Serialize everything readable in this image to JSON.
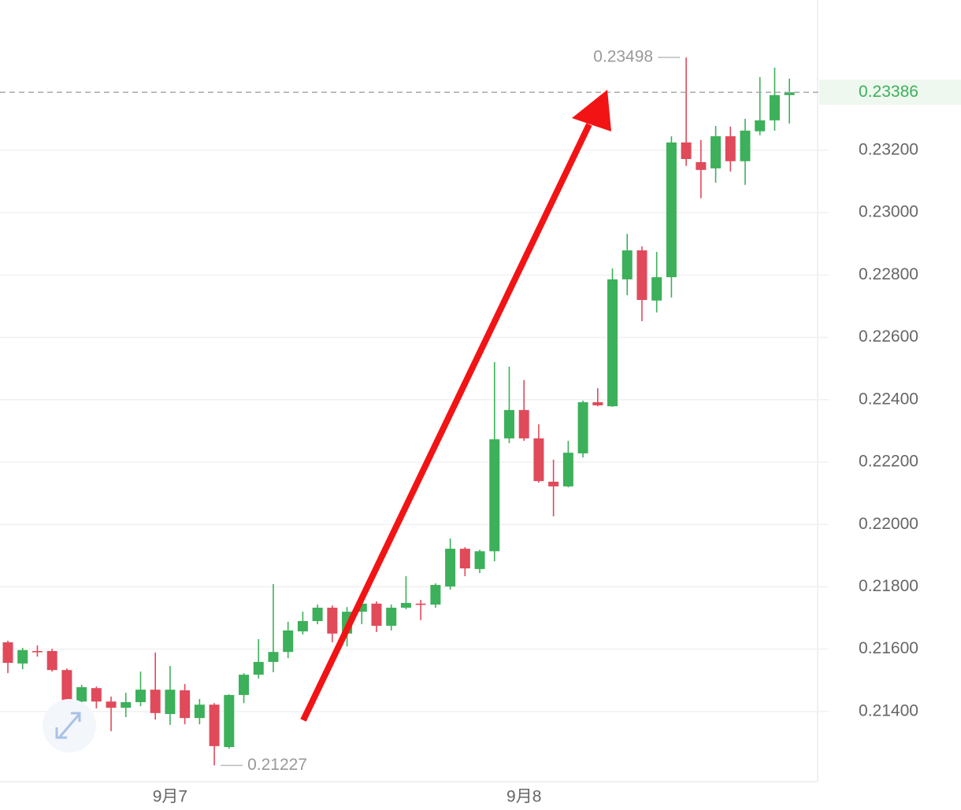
{
  "chart_data": {
    "type": "candlestick",
    "categories": [
      null,
      null,
      null,
      null,
      null,
      null,
      null,
      null,
      null,
      null,
      null,
      "9月7",
      null,
      null,
      null,
      null,
      null,
      null,
      null,
      null,
      null,
      null,
      null,
      null,
      null,
      null,
      null,
      null,
      null,
      null,
      null,
      null,
      null,
      null,
      null,
      "9月8",
      null,
      null,
      null,
      null,
      null,
      null,
      null,
      null,
      null,
      null,
      null,
      null,
      null,
      null,
      null,
      null,
      null,
      null
    ],
    "open": [
      0.21622,
      0.21554,
      0.21594,
      0.21594,
      0.21533,
      0.21432,
      0.21475,
      0.21432,
      0.21412,
      0.2143,
      0.2147,
      0.21392,
      0.21468,
      0.21379,
      0.21422,
      0.21286,
      0.21453,
      0.21518,
      0.21559,
      0.21591,
      0.21657,
      0.2169,
      0.21733,
      0.2165,
      0.2172,
      0.21746,
      0.21675,
      0.21733,
      0.21746,
      0.21743,
      0.21801,
      0.21922,
      0.21857,
      0.21914,
      0.22276,
      0.22367,
      0.22276,
      0.22137,
      0.22122,
      0.22228,
      0.22392,
      0.22379,
      0.22786,
      0.22879,
      0.22718,
      0.22793,
      0.23225,
      0.23162,
      0.23142,
      0.23245,
      0.23165,
      0.23261,
      0.23296,
      0.23377
    ],
    "high": [
      0.21627,
      0.21604,
      0.21612,
      0.21601,
      0.21538,
      0.21486,
      0.2148,
      0.21448,
      0.2146,
      0.21528,
      0.21589,
      0.21546,
      0.21488,
      0.2144,
      0.21427,
      0.21455,
      0.21523,
      0.21632,
      0.21809,
      0.21688,
      0.2172,
      0.21743,
      0.2174,
      0.21735,
      0.21756,
      0.21753,
      0.21743,
      0.21834,
      0.21758,
      0.21811,
      0.21955,
      0.21927,
      0.21919,
      0.22521,
      0.22506,
      0.22463,
      0.22321,
      0.22208,
      0.22268,
      0.22397,
      0.22437,
      0.22821,
      0.22932,
      0.22892,
      0.22874,
      0.23245,
      0.23498,
      0.23233,
      0.23278,
      0.23276,
      0.23301,
      0.23435,
      0.23465,
      0.2343
    ],
    "low": [
      0.21523,
      0.21536,
      0.21576,
      0.21528,
      0.21427,
      0.21427,
      0.2141,
      0.21337,
      0.21382,
      0.21417,
      0.21374,
      0.21357,
      0.21359,
      0.21359,
      0.21227,
      0.21281,
      0.21427,
      0.21506,
      0.21526,
      0.21571,
      0.21647,
      0.2168,
      0.21622,
      0.21609,
      0.2168,
      0.21655,
      0.2166,
      0.21728,
      0.21693,
      0.21733,
      0.21791,
      0.21834,
      0.21844,
      0.21882,
      0.22261,
      0.22268,
      0.22134,
      0.22026,
      0.22119,
      0.22215,
      0.22379,
      0.22377,
      0.22735,
      0.22652,
      0.2268,
      0.22728,
      0.2315,
      0.23046,
      0.23096,
      0.23132,
      0.23089,
      0.23248,
      0.23263,
      0.23286
    ],
    "close": [
      0.21556,
      0.21597,
      0.21591,
      0.21533,
      0.21435,
      0.21478,
      0.21432,
      0.21412,
      0.2143,
      0.2147,
      0.21395,
      0.2147,
      0.21379,
      0.21422,
      0.21289,
      0.21453,
      0.21518,
      0.21559,
      0.21591,
      0.2166,
      0.2169,
      0.21733,
      0.2165,
      0.2172,
      0.21746,
      0.21675,
      0.21733,
      0.21748,
      0.21743,
      0.21806,
      0.21922,
      0.21859,
      0.21914,
      0.22273,
      0.22367,
      0.22276,
      0.22139,
      0.22122,
      0.2223,
      0.22392,
      0.22382,
      0.22786,
      0.22879,
      0.2272,
      0.22793,
      0.23225,
      0.23172,
      0.23137,
      0.23245,
      0.23165,
      0.23263,
      0.23296,
      0.23377,
      0.23386
    ],
    "up_color": "#3cb05a",
    "down_color": "#e04a5a",
    "ylim": [
      0.21175,
      0.23682
    ],
    "yticks": [
      {
        "value": 0.214,
        "label": "0.21400"
      },
      {
        "value": 0.216,
        "label": "0.21600"
      },
      {
        "value": 0.218,
        "label": "0.21800"
      },
      {
        "value": 0.22,
        "label": "0.22000"
      },
      {
        "value": 0.222,
        "label": "0.22200"
      },
      {
        "value": 0.224,
        "label": "0.22400"
      },
      {
        "value": 0.226,
        "label": "0.22600"
      },
      {
        "value": 0.228,
        "label": "0.22800"
      },
      {
        "value": 0.23,
        "label": "0.23000"
      },
      {
        "value": 0.232,
        "label": "0.23200"
      }
    ],
    "grid": true,
    "high_label": 0.23498,
    "low_label": 0.21227,
    "last_price": 0.23386
  }
}
